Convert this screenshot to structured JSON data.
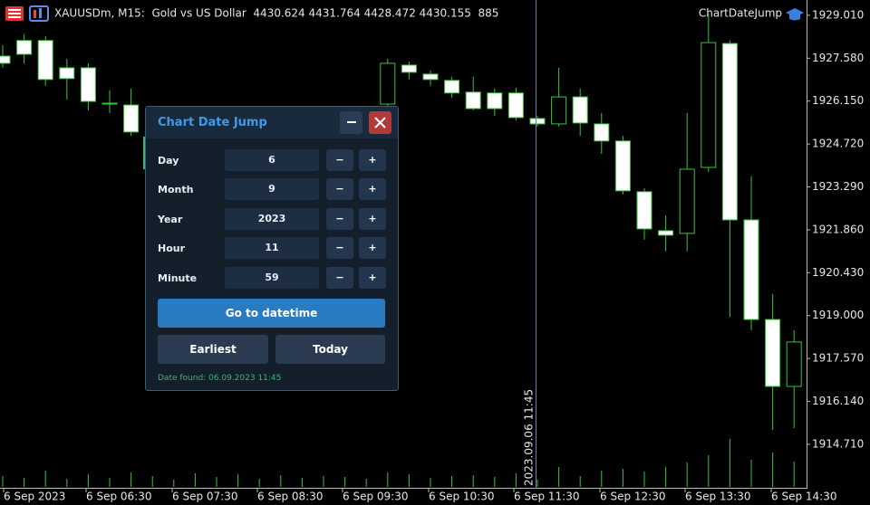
{
  "header": {
    "symbol_info": "XAUUSDm, M15:  Gold vs US Dollar  4430.624 4431.764 4428.472 4430.155  885",
    "indicator_name": "ChartDateJump"
  },
  "chart_data": {
    "type": "candlestick",
    "ylim": [
      1913.29,
      1929.52
    ],
    "yticks": [
      {
        "value": 1929.01,
        "label": "1929.010"
      },
      {
        "value": 1927.58,
        "label": "1927.580"
      },
      {
        "value": 1926.15,
        "label": "1926.150"
      },
      {
        "value": 1924.72,
        "label": "1924.720"
      },
      {
        "value": 1923.29,
        "label": "1923.290"
      },
      {
        "value": 1921.86,
        "label": "1921.860"
      },
      {
        "value": 1920.43,
        "label": "1920.430"
      },
      {
        "value": 1919,
        "label": "1919.000"
      },
      {
        "value": 1917.57,
        "label": "1917.570"
      },
      {
        "value": 1916.14,
        "label": "1916.140"
      },
      {
        "value": 1914.71,
        "label": "1914.710"
      }
    ],
    "time_labels": [
      "6 Sep 2023",
      "6 Sep 06:30",
      "6 Sep 07:30",
      "6 Sep 08:30",
      "6 Sep 09:30",
      "6 Sep 10:30",
      "6 Sep 11:30",
      "6 Sep 12:30",
      "6 Sep 13:30",
      "6 Sep 14:30"
    ],
    "crosshair_label": "2023.09.06 11:45",
    "up_color": "#000000",
    "down_color": "#ffffff",
    "wick_color": "#3cc23c",
    "open": [
      1927.65,
      1928.17,
      1928.17,
      1927.26,
      1927.26,
      1926.08,
      1926.02,
      null,
      null,
      null,
      null,
      null,
      null,
      null,
      null,
      null,
      null,
      null,
      1926.05,
      1927.35,
      1927.05,
      1926.84,
      1926.45,
      1926.42,
      1926.42,
      1925.57,
      1925.39,
      1926.29,
      1925.39,
      1924.82,
      1923.13,
      1921.83,
      1921.74,
      1923.94,
      1928.07,
      1922.19,
      1918.87,
      1916.64
    ],
    "high": [
      1928.01,
      1928.38,
      1928.32,
      1927.56,
      1927.41,
      1926.51,
      1926.57,
      null,
      null,
      null,
      null,
      null,
      null,
      null,
      null,
      null,
      null,
      null,
      1927.56,
      1927.47,
      1927.17,
      1926.96,
      1926.96,
      1926.57,
      1926.6,
      1925.66,
      1927.26,
      1926.57,
      1925.75,
      1924.99,
      1923.25,
      1922.34,
      1925.75,
      1929.07,
      1928.17,
      1923.64,
      1919.72,
      1918.51
    ],
    "low": [
      1927.26,
      1927.41,
      1926.66,
      1926.2,
      1925.84,
      1925.75,
      1924.99,
      null,
      null,
      null,
      null,
      null,
      null,
      null,
      null,
      null,
      null,
      null,
      1925.96,
      1926.87,
      1926.66,
      1926.26,
      1925.84,
      1925.66,
      1925.51,
      1925.3,
      1925.3,
      1924.99,
      1924.39,
      1923.04,
      1921.53,
      1921.14,
      1921.14,
      1923.79,
      1918.96,
      1918.51,
      1915.19,
      1915.25
    ],
    "close": [
      1927.41,
      1927.71,
      1926.87,
      1926.9,
      1926.14,
      1926.08,
      1925.12,
      null,
      null,
      null,
      null,
      null,
      null,
      null,
      null,
      null,
      null,
      null,
      1927.41,
      1927.11,
      1926.87,
      1926.42,
      1925.9,
      1925.9,
      1925.6,
      1925.39,
      1926.29,
      1925.42,
      1924.82,
      1923.16,
      1921.89,
      1921.68,
      1923.88,
      1928.1,
      1922.19,
      1918.87,
      1916.64,
      1918.12
    ],
    "volumes": [
      12,
      10,
      18,
      9,
      14,
      10,
      16,
      12,
      8,
      15,
      11,
      14,
      9,
      13,
      10,
      12,
      11,
      9,
      16,
      14,
      10,
      12,
      13,
      11,
      15,
      8,
      22,
      12,
      18,
      20,
      17,
      22,
      27,
      35,
      53,
      30,
      38,
      28
    ]
  },
  "dialog": {
    "title": "Chart Date Jump",
    "fields": [
      {
        "label": "Day",
        "value": 6
      },
      {
        "label": "Month",
        "value": 9
      },
      {
        "label": "Year",
        "value": 2023
      },
      {
        "label": "Hour",
        "value": 11
      },
      {
        "label": "Minute",
        "value": 59
      }
    ],
    "decrement_label": "−",
    "increment_label": "+",
    "go_button": "Go to datetime",
    "earliest_button": "Earliest",
    "today_button": "Today",
    "status": "Date found: 06.09.2023 11:45"
  }
}
